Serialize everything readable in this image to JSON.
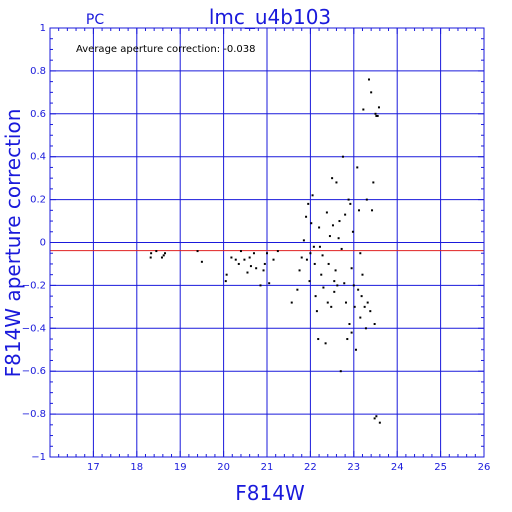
{
  "chart_data": {
    "type": "scatter",
    "title": "lmc_u4b103",
    "subtitle": "PC",
    "annotation": "Average aperture correction: -0.038",
    "xlabel": "F814W",
    "ylabel": "F814W aperture correction",
    "xlim": [
      16,
      26
    ],
    "ylim": [
      -1,
      1
    ],
    "xticks": [
      17,
      18,
      19,
      20,
      21,
      22,
      23,
      24,
      25,
      26
    ],
    "yticks": [
      -1,
      -0.8,
      -0.6,
      -0.4,
      -0.2,
      0,
      0.2,
      0.4,
      0.6,
      0.8,
      1
    ],
    "xtick_labels": [
      "17",
      "18",
      "19",
      "20",
      "21",
      "22",
      "23",
      "24",
      "25",
      "26"
    ],
    "ytick_labels": [
      "−1",
      "−0.8",
      "−0.6",
      "−0.4",
      "−0.2",
      "0",
      "0.2",
      "0.4",
      "0.6",
      "0.8",
      "1"
    ],
    "grid": true,
    "reference_line": {
      "y": -0.038
    },
    "colors": {
      "frame": "#1a1adb",
      "grid": "#1a1adb",
      "reference": "#e02020",
      "points": "#000000",
      "text": "#1a1adb",
      "annotation": "#000000"
    },
    "points": [
      [
        18.32,
        -0.07
      ],
      [
        18.33,
        -0.05
      ],
      [
        18.45,
        -0.04
      ],
      [
        18.58,
        -0.07
      ],
      [
        18.62,
        -0.06
      ],
      [
        18.65,
        -0.05
      ],
      [
        19.4,
        -0.04
      ],
      [
        19.5,
        -0.09
      ],
      [
        20.05,
        -0.18
      ],
      [
        20.07,
        -0.15
      ],
      [
        20.18,
        -0.07
      ],
      [
        20.28,
        -0.08
      ],
      [
        20.35,
        -0.1
      ],
      [
        20.4,
        -0.04
      ],
      [
        20.48,
        -0.08
      ],
      [
        20.55,
        -0.14
      ],
      [
        20.6,
        -0.07
      ],
      [
        20.63,
        -0.11
      ],
      [
        20.7,
        -0.05
      ],
      [
        20.75,
        -0.12
      ],
      [
        20.85,
        -0.2
      ],
      [
        20.92,
        -0.13
      ],
      [
        20.95,
        -0.1
      ],
      [
        21.0,
        -0.05
      ],
      [
        21.05,
        -0.19
      ],
      [
        21.15,
        -0.08
      ],
      [
        21.25,
        -0.04
      ],
      [
        21.57,
        -0.28
      ],
      [
        21.7,
        -0.22
      ],
      [
        21.75,
        -0.13
      ],
      [
        21.8,
        -0.07
      ],
      [
        21.85,
        0.01
      ],
      [
        21.9,
        0.12
      ],
      [
        21.92,
        -0.08
      ],
      [
        21.95,
        0.18
      ],
      [
        21.98,
        -0.18
      ],
      [
        22.0,
        -0.05
      ],
      [
        22.02,
        0.09
      ],
      [
        22.05,
        0.22
      ],
      [
        22.08,
        -0.02
      ],
      [
        22.1,
        -0.1
      ],
      [
        22.12,
        -0.25
      ],
      [
        22.15,
        -0.32
      ],
      [
        22.18,
        -0.45
      ],
      [
        22.2,
        0.07
      ],
      [
        22.22,
        -0.02
      ],
      [
        22.25,
        -0.15
      ],
      [
        22.28,
        -0.06
      ],
      [
        22.3,
        -0.21
      ],
      [
        22.35,
        -0.47
      ],
      [
        22.38,
        0.14
      ],
      [
        22.4,
        -0.28
      ],
      [
        22.42,
        -0.1
      ],
      [
        22.45,
        0.03
      ],
      [
        22.48,
        -0.3
      ],
      [
        22.5,
        0.3
      ],
      [
        22.52,
        0.08
      ],
      [
        22.55,
        -0.18
      ],
      [
        22.58,
        -0.13
      ],
      [
        22.6,
        0.28
      ],
      [
        22.62,
        -0.2
      ],
      [
        22.65,
        0.02
      ],
      [
        22.67,
        0.1
      ],
      [
        22.7,
        -0.6
      ],
      [
        22.72,
        -0.03
      ],
      [
        22.75,
        0.4
      ],
      [
        22.78,
        -0.19
      ],
      [
        22.8,
        0.13
      ],
      [
        22.82,
        -0.28
      ],
      [
        22.85,
        -0.45
      ],
      [
        22.88,
        0.2
      ],
      [
        22.9,
        -0.38
      ],
      [
        22.92,
        0.18
      ],
      [
        22.95,
        -0.12
      ],
      [
        22.98,
        0.05
      ],
      [
        23.0,
        -0.2
      ],
      [
        23.02,
        -0.3
      ],
      [
        23.05,
        -0.5
      ],
      [
        23.08,
        0.35
      ],
      [
        23.1,
        -0.22
      ],
      [
        23.12,
        0.15
      ],
      [
        23.15,
        -0.35
      ],
      [
        23.18,
        -0.25
      ],
      [
        23.2,
        -0.15
      ],
      [
        23.22,
        0.62
      ],
      [
        23.25,
        -0.3
      ],
      [
        23.28,
        -0.4
      ],
      [
        23.3,
        0.2
      ],
      [
        23.32,
        -0.28
      ],
      [
        23.35,
        0.76
      ],
      [
        23.38,
        -0.32
      ],
      [
        23.4,
        0.7
      ],
      [
        23.42,
        0.15
      ],
      [
        23.45,
        0.28
      ],
      [
        23.48,
        -0.38
      ],
      [
        23.5,
        0.6
      ],
      [
        23.52,
        0.59
      ],
      [
        23.55,
        0.59
      ],
      [
        23.58,
        0.63
      ],
      [
        23.48,
        -0.82
      ],
      [
        23.52,
        -0.81
      ],
      [
        23.6,
        -0.84
      ],
      [
        22.95,
        -0.42
      ],
      [
        23.15,
        -0.05
      ],
      [
        22.55,
        -0.23
      ]
    ]
  }
}
